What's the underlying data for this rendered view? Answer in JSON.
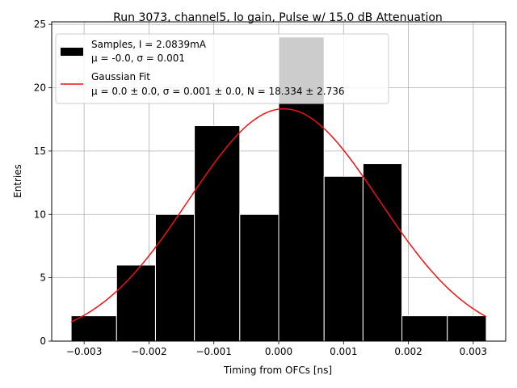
{
  "chart_data": {
    "type": "bar",
    "title": "Run 3073, channel5, lo gain, Pulse w/ 15.0 dB Attenuation",
    "xlabel": "Timing from OFCs [ns]",
    "ylabel": "Entries",
    "xlim": [
      -0.0035,
      0.0035
    ],
    "ylim": [
      0,
      25.2
    ],
    "xticks": [
      -0.003,
      -0.002,
      -0.001,
      0.0,
      0.001,
      0.002,
      0.003
    ],
    "xtick_labels": [
      "−0.003",
      "−0.002",
      "−0.001",
      "0.000",
      "0.001",
      "0.002",
      "0.003"
    ],
    "yticks": [
      0,
      5,
      10,
      15,
      20,
      25
    ],
    "ytick_labels": [
      "0",
      "5",
      "10",
      "15",
      "20",
      "25"
    ],
    "grid": true,
    "legend_position": "top-left",
    "histogram": {
      "name": "Samples, I = 2.0839mA",
      "stats_label": "μ = -0.0, σ = 0.001",
      "color": "#000000",
      "bin_edges": [
        -0.0032,
        -0.0025,
        -0.0019,
        -0.0013,
        -0.0006,
        0.0,
        0.0007,
        0.0013,
        0.0019,
        0.0026,
        0.0032
      ],
      "counts": [
        2,
        6,
        10,
        17,
        10,
        24,
        13,
        14,
        2,
        2
      ]
    },
    "fit": {
      "name": "Gaussian Fit",
      "params_label": "μ = 0.0 ± 0.0, σ = 0.001 ± 0.0, N = 18.334 ± 2.736",
      "color": "#ee1111",
      "mu": 8e-05,
      "sigma": 0.00147,
      "amplitude": 18.334,
      "x_range": [
        -0.0032,
        0.0032
      ]
    }
  }
}
